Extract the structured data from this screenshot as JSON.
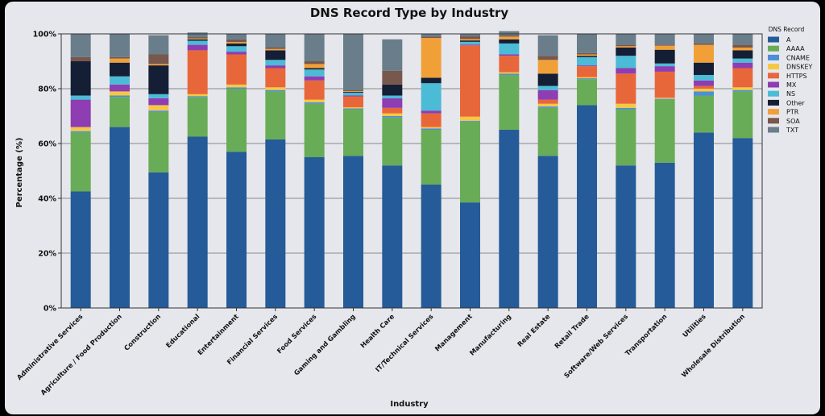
{
  "chart_data": {
    "type": "bar",
    "stacked": true,
    "title": "DNS Record Type by Industry",
    "xlabel": "Industry",
    "ylabel": "Percentage (%)",
    "ylim": [
      0,
      100
    ],
    "yticks": [
      "0%",
      "20%",
      "40%",
      "60%",
      "80%",
      "100%"
    ],
    "grid": "y",
    "legend_title": "DNS Record",
    "legend_position": "top-right outside",
    "categories": [
      "Administrative Services",
      "Agriculture / Food Production",
      "Construction",
      "Educational",
      "Entertainment",
      "Financial Services",
      "Food Services",
      "Gaming and Gambling",
      "Health Care",
      "IT/Technical Services",
      "Management",
      "Manufacturing",
      "Real Estate",
      "Retail Trade",
      "Software/Web Services",
      "Transportation",
      "Utilities",
      "Wholesale Distribution"
    ],
    "series": [
      {
        "name": "A",
        "color": "#245b98",
        "values": [
          42.5,
          66,
          49.5,
          62.5,
          57,
          61.5,
          55,
          55.5,
          52,
          45,
          38.5,
          65,
          55.5,
          74,
          52,
          53,
          64,
          62
        ]
      },
      {
        "name": "AAAA",
        "color": "#68ac57",
        "values": [
          21.5,
          11,
          22,
          14.5,
          23,
          17.5,
          19.5,
          17,
          17.5,
          20,
          29.5,
          20,
          17.5,
          9.5,
          20.5,
          23,
          13.5,
          17
        ]
      },
      {
        "name": "CNAME",
        "color": "#4c8ed8",
        "values": [
          0.5,
          0.5,
          0.5,
          0.3,
          0.5,
          0.5,
          0.5,
          0.3,
          0.5,
          0.5,
          0.3,
          0.5,
          0.5,
          0.3,
          0.5,
          0.3,
          1.5,
          0.5
        ]
      },
      {
        "name": "DNSKEY",
        "color": "#f6c842",
        "values": [
          1.5,
          1.5,
          2,
          0.7,
          1,
          1,
          1,
          0.4,
          1,
          0.5,
          1.5,
          0.5,
          1,
          0.4,
          1.5,
          0.4,
          1,
          1
        ]
      },
      {
        "name": "HTTPS",
        "color": "#e8673a",
        "values": [
          0,
          0,
          0,
          16,
          11,
          7,
          7,
          4,
          2,
          5,
          26,
          6,
          1.5,
          4,
          11,
          9.5,
          1,
          7
        ]
      },
      {
        "name": "MX",
        "color": "#8e3db2",
        "values": [
          10,
          2.5,
          2.5,
          2,
          1,
          1,
          1.5,
          0.3,
          3.5,
          1,
          0.3,
          0.5,
          3.5,
          0.3,
          2,
          2,
          2,
          2
        ]
      },
      {
        "name": "NS",
        "color": "#4bbbd6",
        "values": [
          1.5,
          3,
          1.5,
          1.5,
          2,
          2,
          2.5,
          1,
          1,
          10,
          1,
          4,
          1.5,
          3,
          4.5,
          1,
          2,
          1.5
        ]
      },
      {
        "name": "Other",
        "color": "#141e35",
        "values": [
          12.5,
          5,
          10.5,
          0.5,
          1,
          3.5,
          0.5,
          0.3,
          4,
          2,
          0.5,
          1.5,
          4.5,
          0.5,
          3,
          5,
          4.5,
          3
        ]
      },
      {
        "name": "PTR",
        "color": "#f1a038",
        "values": [
          0,
          1.5,
          0.5,
          0.3,
          0.5,
          0.5,
          1.5,
          0.3,
          0,
          14.5,
          0.5,
          1,
          5,
          0.5,
          0.5,
          1.5,
          6.5,
          1
        ]
      },
      {
        "name": "SOA",
        "color": "#78574c",
        "values": [
          1.5,
          0.5,
          3.5,
          0.5,
          1,
          0.5,
          1,
          0.3,
          5,
          0.5,
          1,
          0.5,
          1.5,
          0.5,
          0.5,
          0.3,
          0.5,
          1
        ]
      },
      {
        "name": "TXT",
        "color": "#6a7d8a",
        "values": [
          8.5,
          8.5,
          7,
          1.7,
          2,
          5,
          10,
          20.6,
          11.5,
          1,
          1,
          1.5,
          7.5,
          7,
          4,
          4,
          3.5,
          4
        ]
      }
    ]
  }
}
